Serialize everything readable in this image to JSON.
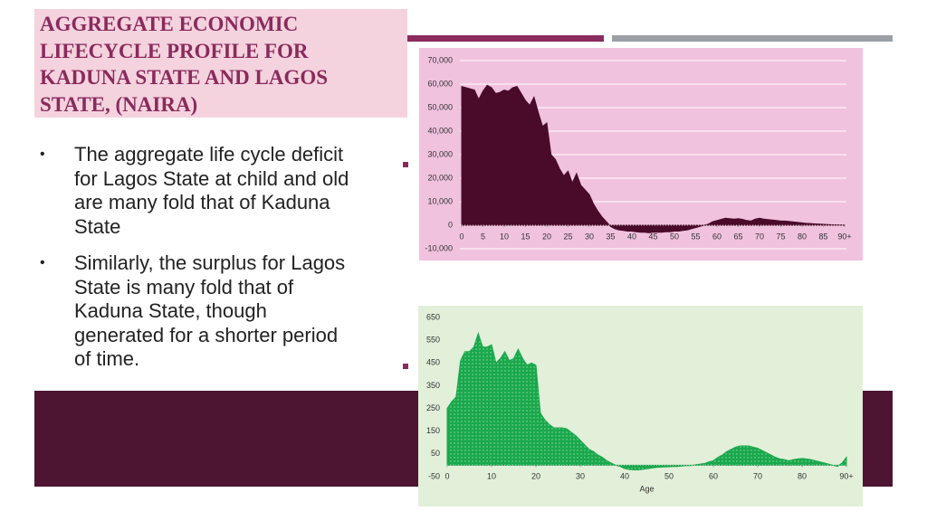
{
  "title": [
    "AGGREGATE ECONOMIC",
    "LIFECYCLE PROFILE FOR",
    "KADUNA STATE AND LAGOS",
    "STATE, (NAIRA)"
  ],
  "bullets": [
    "The aggregate life cycle deficit for Lagos State at child and old are many fold that of Kaduna State",
    "Similarly, the surplus for Lagos State is many fold that of Kaduna State, though generated for a shorter period of time."
  ],
  "chart_data": [
    {
      "type": "area",
      "color": "#4a0a2a",
      "background": "#f0c2de",
      "grid": true,
      "x": [
        0,
        1,
        2,
        3,
        4,
        5,
        6,
        7,
        8,
        9,
        10,
        11,
        12,
        13,
        14,
        15,
        16,
        17,
        18,
        19,
        20,
        21,
        22,
        23,
        24,
        25,
        26,
        27,
        28,
        29,
        30,
        31,
        32,
        33,
        34,
        35,
        36,
        37,
        38,
        39,
        40,
        41,
        42,
        43,
        44,
        45,
        46,
        47,
        48,
        49,
        50,
        51,
        52,
        53,
        54,
        55,
        56,
        57,
        58,
        59,
        60,
        61,
        62,
        63,
        64,
        65,
        66,
        67,
        68,
        69,
        70,
        71,
        72,
        73,
        74,
        75,
        76,
        77,
        78,
        79,
        80,
        81,
        82,
        83,
        84,
        85,
        86,
        87,
        88,
        89,
        90
      ],
      "values": [
        59000,
        58500,
        58000,
        57500,
        53500,
        57000,
        59500,
        58500,
        56000,
        56500,
        57500,
        57000,
        58500,
        59000,
        56000,
        53000,
        51000,
        54500,
        48000,
        42000,
        43500,
        30000,
        28000,
        24000,
        21000,
        23000,
        18000,
        22000,
        17000,
        15000,
        13000,
        9000,
        6000,
        3500,
        1500,
        -500,
        -1500,
        -2000,
        -2200,
        -2500,
        -2500,
        -2800,
        -3000,
        -3000,
        -3200,
        -3000,
        -3000,
        -3000,
        -2800,
        -2800,
        -2500,
        -2500,
        -2200,
        -2000,
        -1500,
        -1000,
        -500,
        0,
        500,
        1500,
        2000,
        2500,
        3000,
        2800,
        2600,
        2800,
        2500,
        2000,
        1800,
        2600,
        3000,
        2600,
        2400,
        2200,
        2000,
        1800,
        1800,
        1600,
        1400,
        1200,
        1000,
        800,
        700,
        600,
        500,
        400,
        300,
        200,
        150,
        100,
        50
      ],
      "xlim": [
        0,
        90
      ],
      "xticks": [
        0,
        5,
        10,
        15,
        20,
        25,
        30,
        35,
        40,
        45,
        50,
        55,
        60,
        65,
        70,
        75,
        80,
        85,
        {
          "value": 90,
          "label": "90+"
        }
      ],
      "ylim": [
        -10000,
        70000
      ],
      "yticks": [
        {
          "value": -10000,
          "label": "-10,000"
        },
        0,
        {
          "value": 10000,
          "label": "10,000"
        },
        {
          "value": 20000,
          "label": "20,000"
        },
        {
          "value": 30000,
          "label": "30,000"
        },
        {
          "value": 40000,
          "label": "40,000"
        },
        {
          "value": 50000,
          "label": "50,000"
        },
        {
          "value": 60000,
          "label": "60,000"
        },
        {
          "value": 70000,
          "label": "70,000"
        }
      ]
    },
    {
      "type": "area",
      "color": "#1aa84c",
      "background": "#e2f0d9",
      "grid": false,
      "fill_pattern": "dots",
      "x_label": "Age",
      "x": [
        0,
        1,
        2,
        3,
        4,
        5,
        6,
        7,
        8,
        9,
        10,
        11,
        12,
        13,
        14,
        15,
        16,
        17,
        18,
        19,
        20,
        21,
        22,
        23,
        24,
        25,
        26,
        27,
        28,
        29,
        30,
        31,
        32,
        33,
        34,
        35,
        36,
        37,
        38,
        39,
        40,
        41,
        42,
        43,
        44,
        45,
        46,
        47,
        48,
        49,
        50,
        51,
        52,
        53,
        54,
        55,
        56,
        57,
        58,
        59,
        60,
        61,
        62,
        63,
        64,
        65,
        66,
        67,
        68,
        69,
        70,
        71,
        72,
        73,
        74,
        75,
        76,
        77,
        78,
        79,
        80,
        81,
        82,
        83,
        84,
        85,
        86,
        87,
        88,
        89,
        90
      ],
      "values": [
        250,
        280,
        300,
        460,
        500,
        500,
        520,
        580,
        520,
        520,
        530,
        450,
        470,
        500,
        460,
        470,
        510,
        470,
        440,
        450,
        440,
        230,
        200,
        180,
        165,
        165,
        165,
        160,
        145,
        130,
        110,
        90,
        70,
        60,
        45,
        35,
        20,
        10,
        0,
        -5,
        -15,
        -18,
        -20,
        -20,
        -18,
        -15,
        -12,
        -10,
        -8,
        -7,
        -6,
        -5,
        -5,
        -3,
        -2,
        -1,
        2,
        5,
        8,
        15,
        20,
        35,
        45,
        60,
        70,
        80,
        85,
        85,
        85,
        80,
        75,
        65,
        55,
        45,
        35,
        28,
        25,
        20,
        25,
        28,
        30,
        28,
        25,
        20,
        15,
        10,
        5,
        0,
        -5,
        10,
        35
      ],
      "xlim": [
        0,
        90
      ],
      "xticks": [
        0,
        10,
        20,
        30,
        40,
        50,
        60,
        70,
        80,
        {
          "value": 90,
          "label": "90+"
        }
      ],
      "ylim": [
        -50,
        650
      ],
      "yticks": [
        -50,
        50,
        150,
        250,
        350,
        450,
        550,
        650
      ]
    }
  ]
}
